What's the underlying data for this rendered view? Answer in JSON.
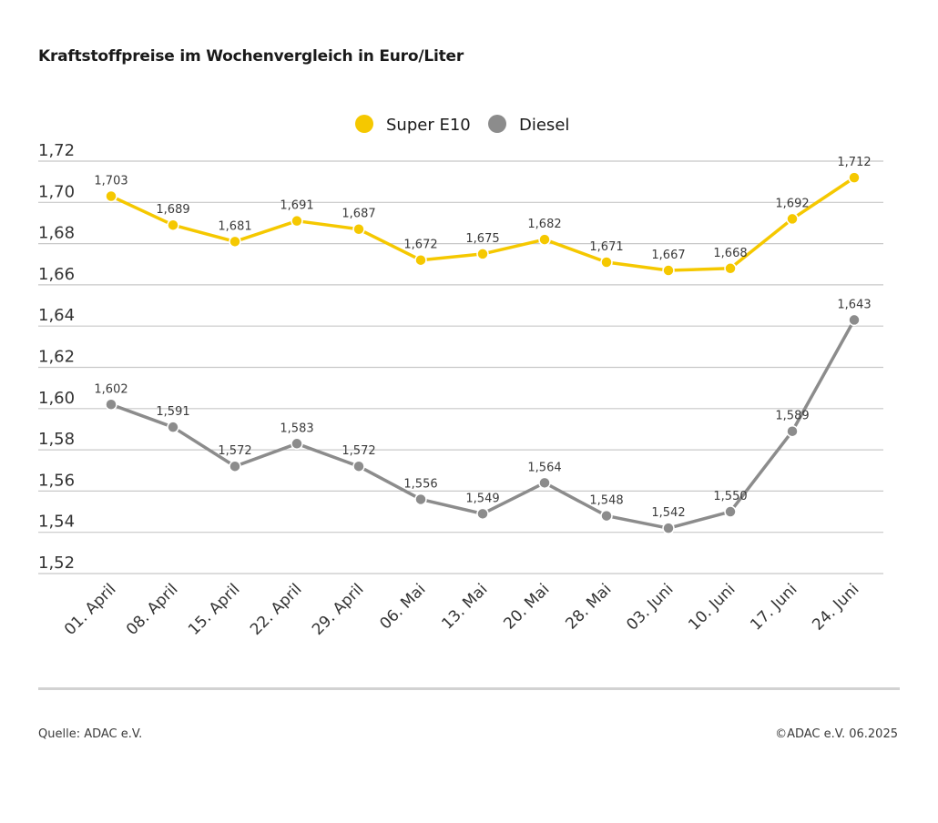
{
  "header": {
    "title": "Kraftstoffpreise im Wochenvergleich in Euro/Liter"
  },
  "footer": {
    "source": "Quelle: ADAC e.V.",
    "copyright": "©ADAC e.V. 06.2025"
  },
  "chart_data": {
    "type": "line",
    "title": "Kraftstoffpreise im Wochenvergleich in Euro/Liter",
    "xlabel": "",
    "ylabel": "",
    "categories": [
      "01. April",
      "08. April",
      "15. April",
      "22. April",
      "29. April",
      "06. Mai",
      "13. Mai",
      "20. Mai",
      "28. Mai",
      "03. Juni",
      "10. Juni",
      "17. Juni",
      "24. Juni"
    ],
    "ylim": [
      1.52,
      1.72
    ],
    "yticks": [
      1.52,
      1.54,
      1.56,
      1.58,
      1.6,
      1.62,
      1.64,
      1.66,
      1.68,
      1.7,
      1.72
    ],
    "ytick_labels": [
      "1,52",
      "1,54",
      "1,56",
      "1,58",
      "1,60",
      "1,62",
      "1,64",
      "1,66",
      "1,68",
      "1,70",
      "1,72"
    ],
    "grid": true,
    "legend": "top-center",
    "series": [
      {
        "name": "Super E10",
        "color": "#f5c800",
        "values": [
          1.703,
          1.689,
          1.681,
          1.691,
          1.687,
          1.672,
          1.675,
          1.682,
          1.671,
          1.667,
          1.668,
          1.692,
          1.712
        ],
        "labels": [
          "1,703",
          "1,689",
          "1,681",
          "1,691",
          "1,687",
          "1,672",
          "1,675",
          "1,682",
          "1,671",
          "1,667",
          "1,668",
          "1,692",
          "1,712"
        ]
      },
      {
        "name": "Diesel",
        "color": "#8c8c8c",
        "values": [
          1.602,
          1.591,
          1.572,
          1.583,
          1.572,
          1.556,
          1.549,
          1.564,
          1.548,
          1.542,
          1.55,
          1.589,
          1.643
        ],
        "labels": [
          "1,602",
          "1,591",
          "1,572",
          "1,583",
          "1,572",
          "1,556",
          "1,549",
          "1,564",
          "1,548",
          "1,542",
          "1,550",
          "1,589",
          "1,643"
        ]
      }
    ]
  }
}
